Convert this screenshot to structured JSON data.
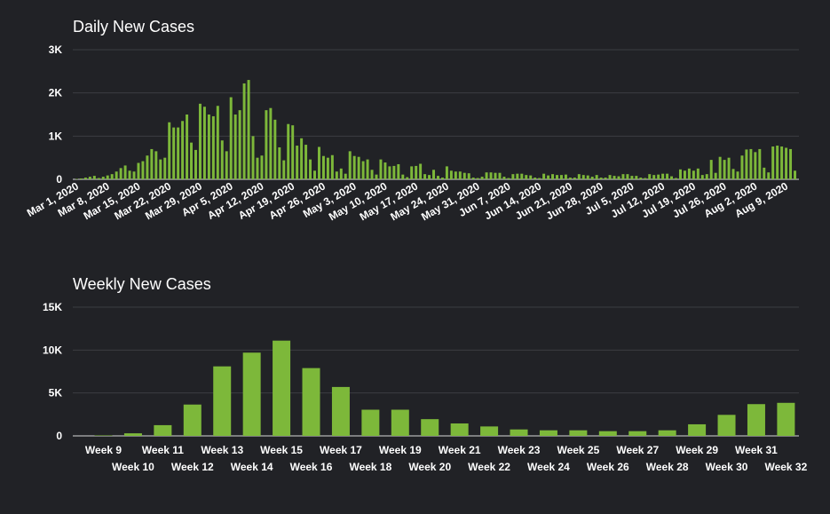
{
  "chart_data": [
    {
      "type": "bar",
      "title": "Daily New Cases",
      "ylim": [
        0,
        3000
      ],
      "yticks": [
        0,
        1000,
        2000,
        3000
      ],
      "ytick_labels": [
        "0",
        "1K",
        "2K",
        "3K"
      ],
      "grid": true,
      "bar_color": "#7db83a",
      "xtick_labels": [
        "Mar 1, 2020",
        "Mar 8, 2020",
        "Mar 15, 2020",
        "Mar 22, 2020",
        "Mar 29, 2020",
        "Apr 5, 2020",
        "Apr 12, 2020",
        "Apr 19, 2020",
        "Apr 26, 2020",
        "May 3, 2020",
        "May 10, 2020",
        "May 17, 2020",
        "May 24, 2020",
        "May 31, 2020",
        "Jun 7, 2020",
        "Jun 14, 2020",
        "Jun 21, 2020",
        "Jun 28, 2020",
        "Jul 5, 2020",
        "Jul 12, 2020",
        "Jul 19, 2020",
        "Jul 26, 2020",
        "Aug 2, 2020",
        "Aug 9, 2020"
      ],
      "values": [
        10,
        20,
        40,
        60,
        80,
        30,
        60,
        90,
        120,
        180,
        260,
        320,
        200,
        180,
        380,
        420,
        550,
        700,
        650,
        460,
        500,
        1320,
        1200,
        1200,
        1350,
        1500,
        850,
        680,
        1750,
        1680,
        1500,
        1460,
        1700,
        900,
        650,
        1900,
        1500,
        1600,
        2220,
        2300,
        1000,
        500,
        550,
        1600,
        1650,
        1380,
        740,
        440,
        1280,
        1250,
        780,
        950,
        800,
        460,
        200,
        750,
        540,
        500,
        560,
        180,
        250,
        130,
        650,
        540,
        520,
        420,
        460,
        220,
        110,
        460,
        390,
        300,
        310,
        350,
        110,
        50,
        300,
        310,
        360,
        120,
        100,
        220,
        80,
        40,
        300,
        200,
        180,
        180,
        150,
        140,
        40,
        30,
        60,
        160,
        160,
        150,
        150,
        60,
        30,
        120,
        130,
        130,
        100,
        90,
        40,
        30,
        130,
        90,
        120,
        100,
        100,
        110,
        40,
        40,
        120,
        100,
        90,
        60,
        100,
        40,
        40,
        100,
        80,
        70,
        120,
        120,
        80,
        80,
        40,
        30,
        120,
        100,
        110,
        130,
        130,
        70,
        30,
        230,
        200,
        250,
        200,
        250,
        100,
        120,
        450,
        150,
        520,
        450,
        500,
        240,
        180,
        550,
        690,
        700,
        630,
        700,
        270,
        160,
        760,
        780,
        760,
        730,
        700,
        200
      ]
    },
    {
      "type": "bar",
      "title": "Weekly New Cases",
      "ylim": [
        0,
        15000
      ],
      "yticks": [
        0,
        5000,
        10000,
        15000
      ],
      "ytick_labels": [
        "0",
        "5K",
        "10K",
        "15K"
      ],
      "grid": true,
      "bar_color": "#7db83a",
      "categories": [
        "Week 9",
        "Week 10",
        "Week 11",
        "Week 12",
        "Week 13",
        "Week 14",
        "Week 15",
        "Week 16",
        "Week 17",
        "Week 18",
        "Week 19",
        "Week 20",
        "Week 21",
        "Week 22",
        "Week 23",
        "Week 24",
        "Week 25",
        "Week 26",
        "Week 27",
        "Week 28",
        "Week 29",
        "Week 30",
        "Week 31",
        "Week 32"
      ],
      "values": [
        50,
        300,
        1250,
        3650,
        8100,
        9700,
        11100,
        7900,
        5700,
        3050,
        3050,
        1950,
        1450,
        1100,
        750,
        650,
        650,
        550,
        550,
        650,
        1350,
        2450,
        3700,
        3850
      ]
    }
  ]
}
